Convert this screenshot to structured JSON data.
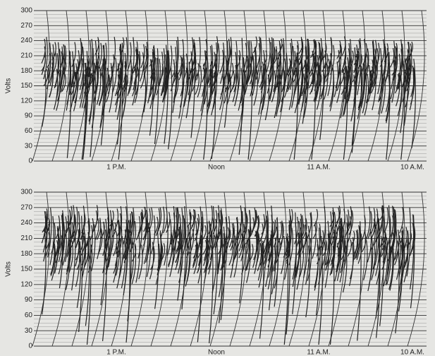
{
  "chart_data": [
    {
      "type": "strip",
      "ylabel": "Volts",
      "ylim": [
        0,
        300
      ],
      "yticks": [
        0,
        30,
        60,
        90,
        120,
        150,
        180,
        210,
        240,
        270,
        300
      ],
      "categories": [
        "1 P.M.",
        "Noon",
        "11 A.M.",
        "10 A.M."
      ],
      "color": "#222"
    },
    {
      "type": "strip",
      "ylabel": "Volts",
      "ylim": [
        0,
        300
      ],
      "yticks": [
        0,
        30,
        60,
        90,
        120,
        150,
        180,
        210,
        240,
        270,
        300
      ],
      "categories": [
        "1 P.M.",
        "Noon",
        "11 A.M.",
        "10 A.M."
      ],
      "color": "#222"
    }
  ]
}
